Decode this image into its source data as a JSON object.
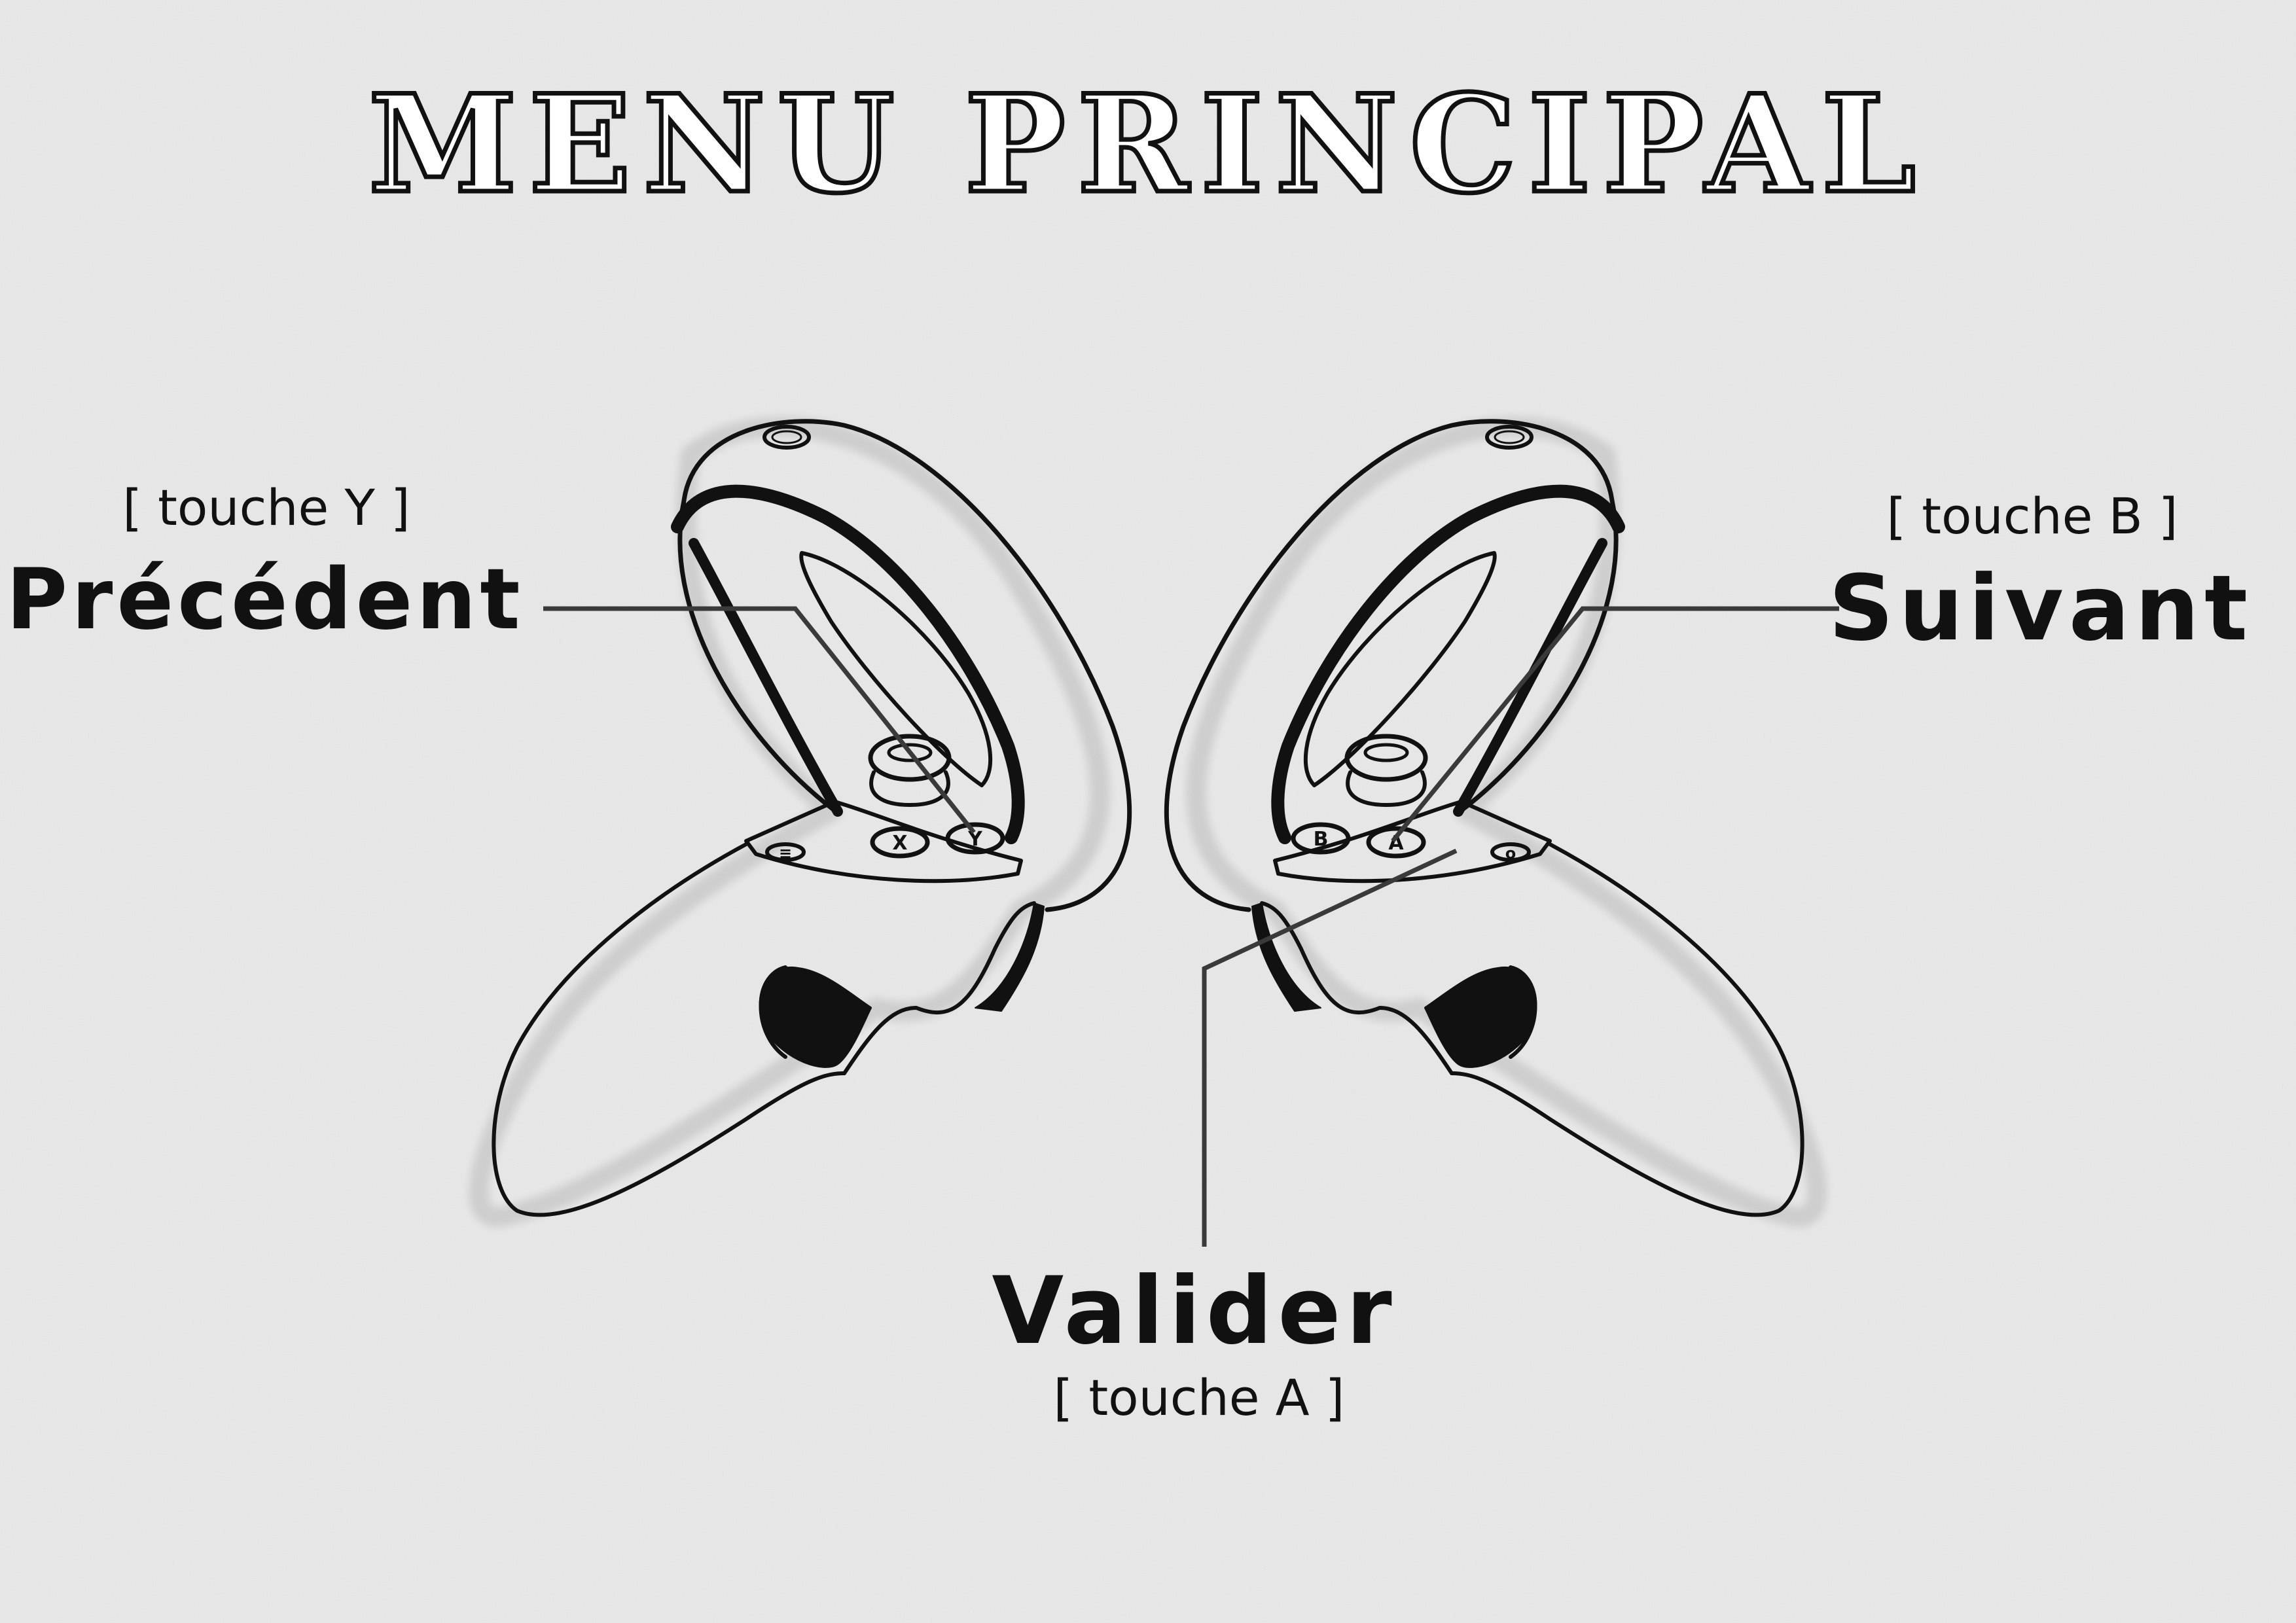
{
  "title": "MENU PRINCIPAL",
  "labels": {
    "previous": {
      "action": "Précédent",
      "key": "[ touche Y ]"
    },
    "next": {
      "action": "Suivant",
      "key": "[ touche B ]"
    },
    "validate": {
      "action": "Valider",
      "key": "[ touche A ]"
    }
  },
  "controllers": {
    "left": {
      "buttons": [
        {
          "name": "x-button",
          "glyph": "X"
        },
        {
          "name": "y-button",
          "glyph": "Y"
        },
        {
          "name": "menu-button",
          "glyph": "≡"
        }
      ]
    },
    "right": {
      "buttons": [
        {
          "name": "a-button",
          "glyph": "A"
        },
        {
          "name": "b-button",
          "glyph": "B"
        },
        {
          "name": "oculus-button",
          "glyph": "o"
        }
      ]
    }
  },
  "colors": {
    "background": "#ececec",
    "ink": "#111111",
    "leader": "#3a3a3a"
  }
}
